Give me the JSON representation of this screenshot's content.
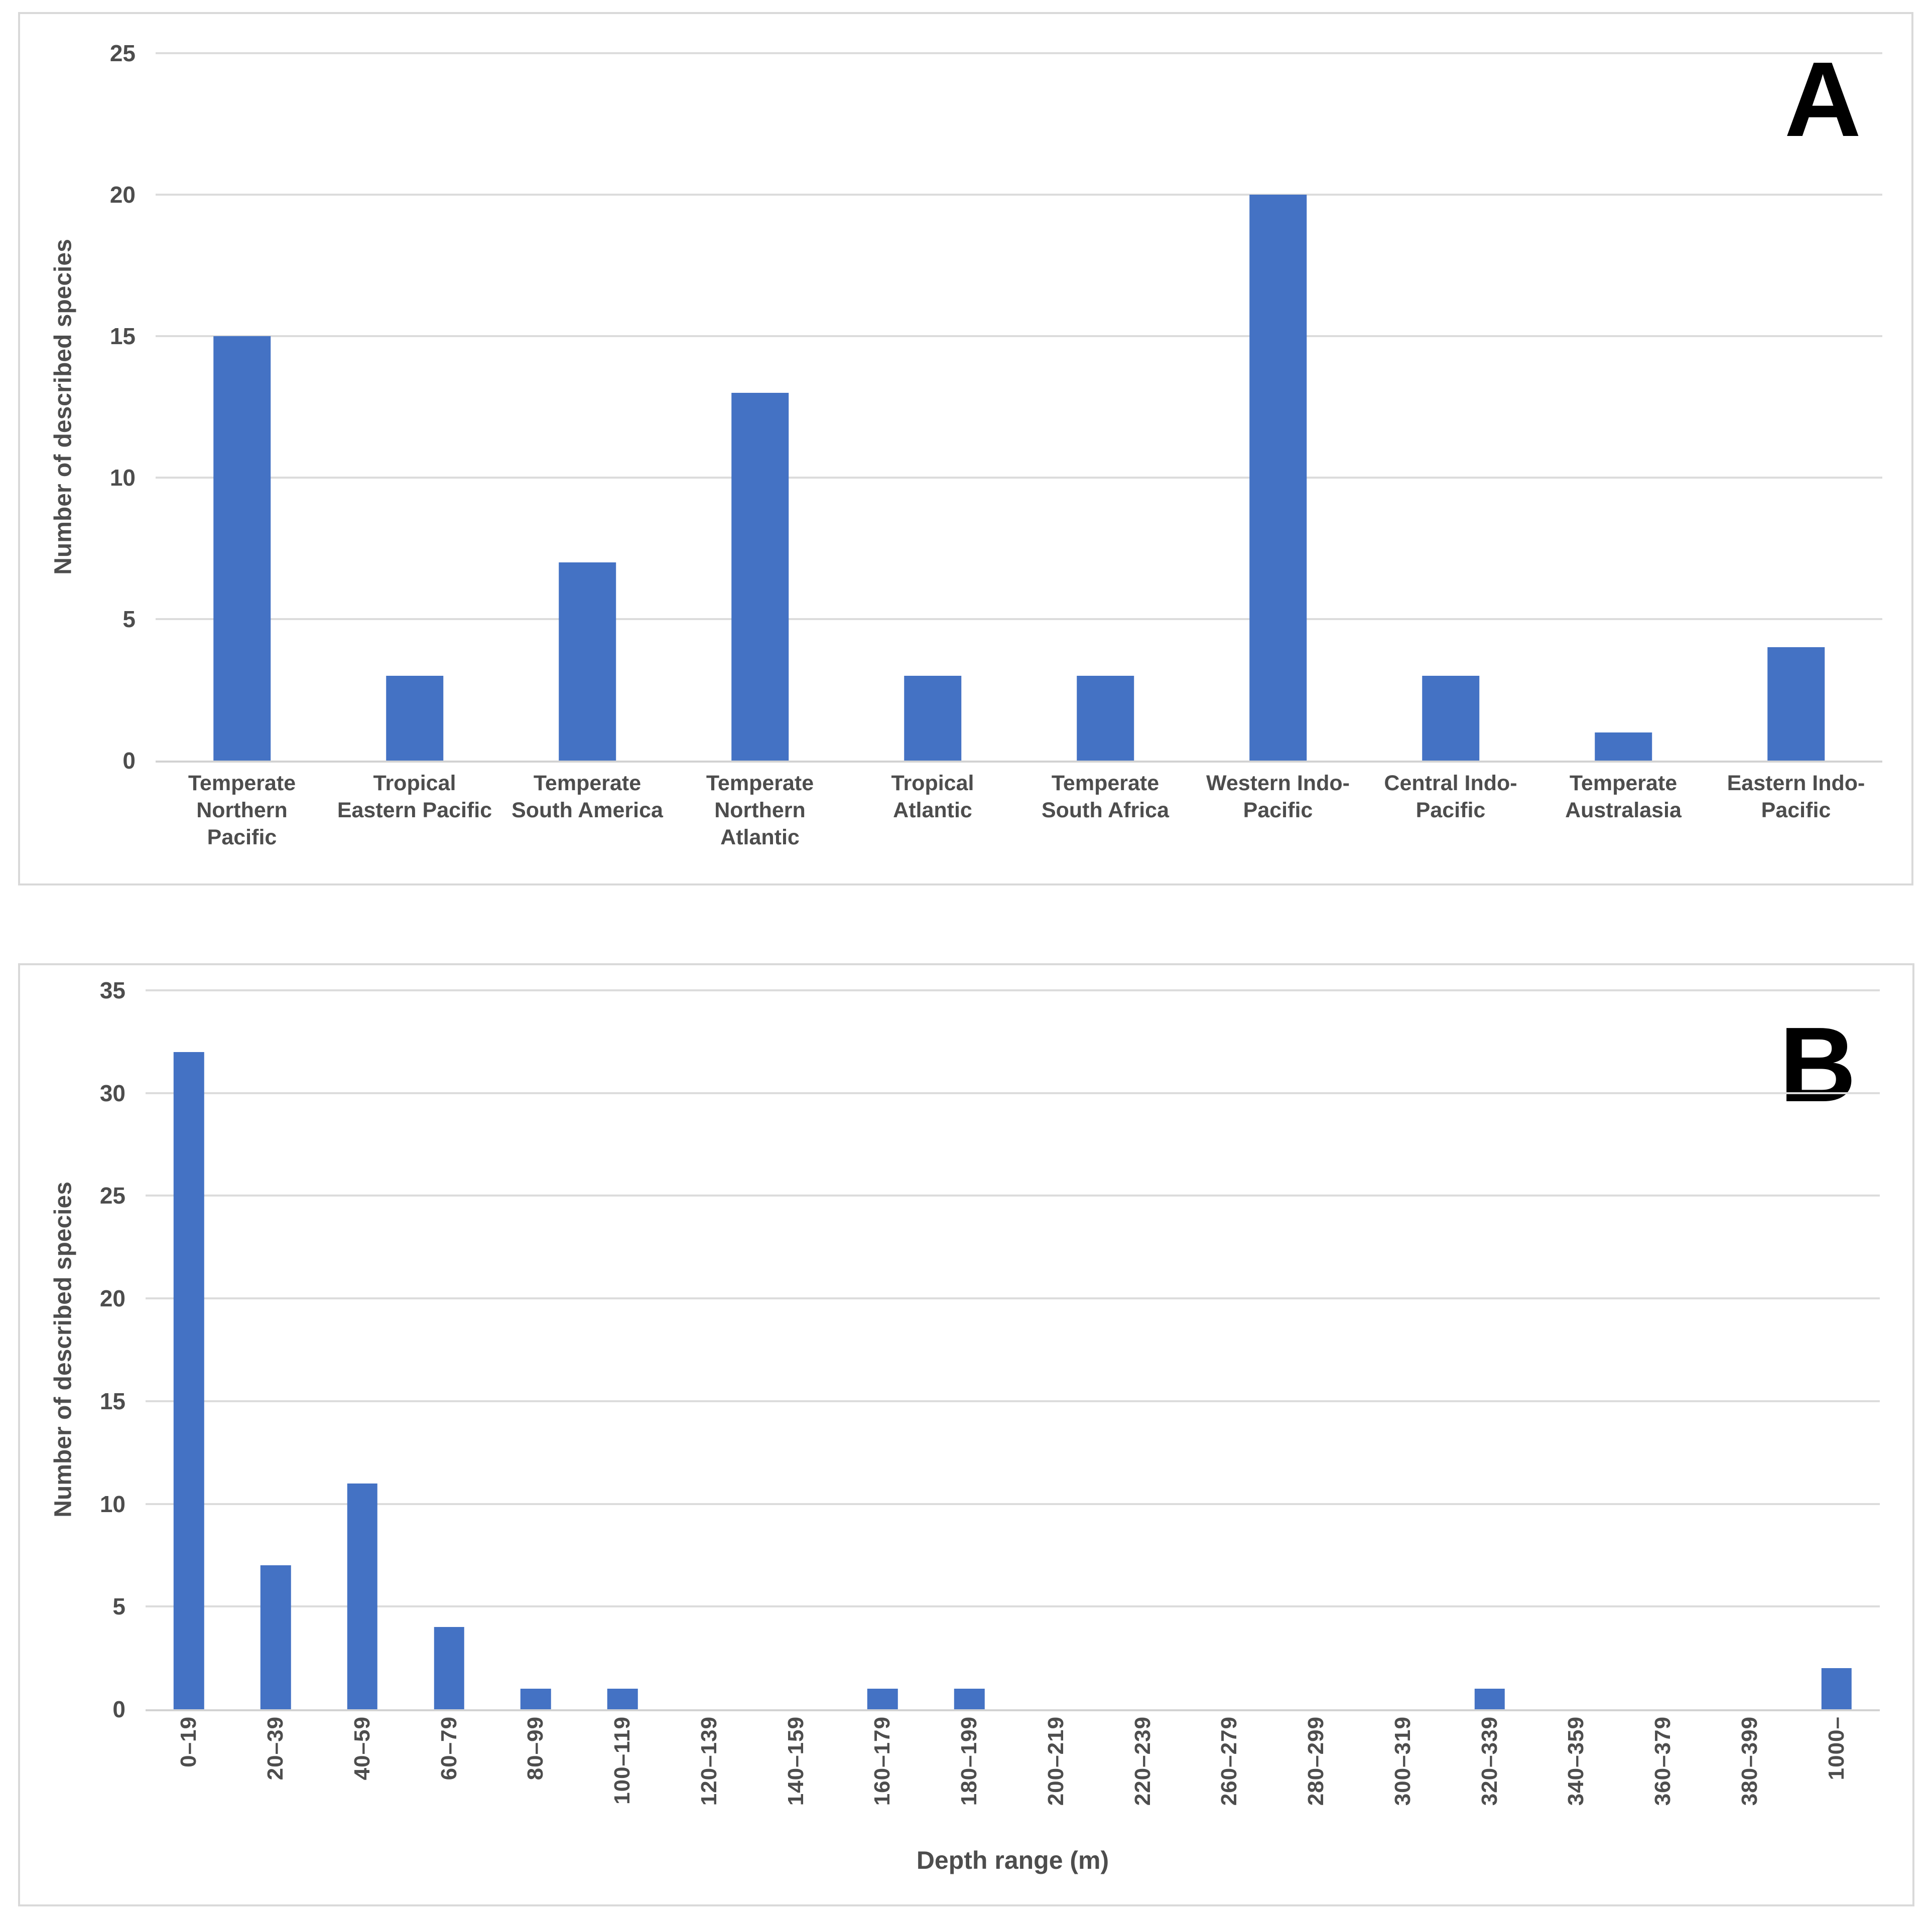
{
  "figure": {
    "background": "#FFFFFF",
    "panel_labels": [
      "A",
      "B"
    ]
  },
  "colors": {
    "bar": "#4472C4",
    "gridline": "#DCDCDC",
    "baseline": "#D2D2D2",
    "axis_text": "#4D4D4D",
    "panel_border": "#D9D9D9",
    "panel_letter": "#000000"
  },
  "chart_data": [
    {
      "type": "bar",
      "panel_label": "A",
      "title": "",
      "xlabel": "",
      "ylabel": "Number of described species",
      "ylim": [
        0,
        25
      ],
      "y_ticks": [
        0,
        5,
        10,
        15,
        20,
        25
      ],
      "grid": true,
      "legend": false,
      "categories": [
        "Temperate Northern Pacific",
        "Tropical Eastern Pacific",
        "Temperate South America",
        "Temperate Northern Atlantic",
        "Tropical Atlantic",
        "Temperate South Africa",
        "Western Indo-Pacific",
        "Central Indo-Pacific",
        "Temperate Australasia",
        "Eastern Indo-Pacific"
      ],
      "values": [
        15,
        3,
        7,
        13,
        3,
        3,
        20,
        3,
        1,
        4
      ]
    },
    {
      "type": "bar",
      "panel_label": "B",
      "title": "",
      "xlabel": "Depth range (m)",
      "ylabel": "Number of described species",
      "ylim": [
        0,
        35
      ],
      "y_ticks": [
        0,
        5,
        10,
        15,
        20,
        25,
        30,
        35
      ],
      "grid": true,
      "legend": false,
      "x_labels_rotated_90": true,
      "categories": [
        "0–19",
        "20–39",
        "40–59",
        "60–79",
        "80–99",
        "100–119",
        "120–139",
        "140–159",
        "160–179",
        "180–199",
        "200–219",
        "220–239",
        "260–279",
        "280–299",
        "300–319",
        "320–339",
        "340–359",
        "360–379",
        "380–399",
        "1000–"
      ],
      "values": [
        32,
        7,
        11,
        4,
        1,
        1,
        0,
        0,
        1,
        1,
        0,
        0,
        0,
        0,
        0,
        1,
        0,
        0,
        0,
        2
      ]
    }
  ]
}
